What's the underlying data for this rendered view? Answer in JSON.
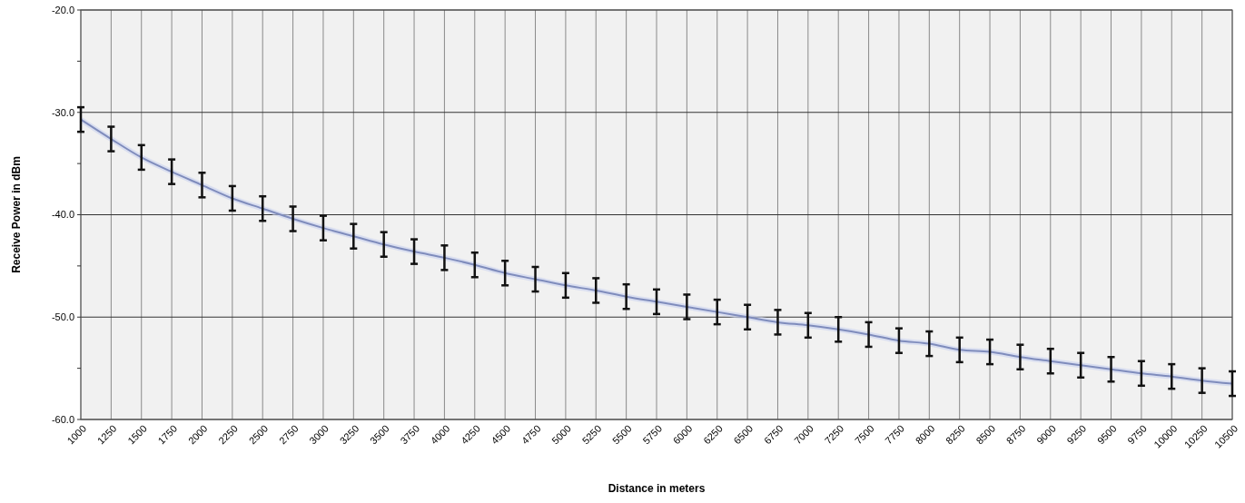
{
  "chart_data": {
    "type": "line",
    "xlabel": "Distance in meters",
    "ylabel": "Receive Power in dBm",
    "categories": [
      "1000",
      "1250",
      "1500",
      "1750",
      "2000",
      "2250",
      "2500",
      "2750",
      "3000",
      "3250",
      "3500",
      "3750",
      "4000",
      "4250",
      "4500",
      "4750",
      "5000",
      "5250",
      "5500",
      "5750",
      "6000",
      "6250",
      "6500",
      "6750",
      "7000",
      "7250",
      "7500",
      "7750",
      "8000",
      "8250",
      "8500",
      "8750",
      "9000",
      "9250",
      "9500",
      "9750",
      "10000",
      "10250",
      "10500"
    ],
    "series": [
      {
        "color": "#7f8cbc",
        "values": [
          -30.7,
          -32.6,
          -34.4,
          -35.8,
          -37.1,
          -38.4,
          -39.4,
          -40.4,
          -41.3,
          -42.1,
          -42.9,
          -43.6,
          -44.2,
          -44.9,
          -45.7,
          -46.3,
          -46.9,
          -47.4,
          -48.0,
          -48.5,
          -49.0,
          -49.5,
          -50.0,
          -50.5,
          -50.8,
          -51.2,
          -51.7,
          -52.3,
          -52.6,
          -53.2,
          -53.4,
          -53.9,
          -54.3,
          -54.7,
          -55.1,
          -55.5,
          -55.8,
          -56.2,
          -56.5
        ],
        "errors": [
          1.2,
          1.2,
          1.2,
          1.2,
          1.2,
          1.2,
          1.2,
          1.2,
          1.2,
          1.2,
          1.2,
          1.2,
          1.2,
          1.2,
          1.2,
          1.2,
          1.2,
          1.2,
          1.2,
          1.2,
          1.2,
          1.2,
          1.2,
          1.2,
          1.2,
          1.2,
          1.2,
          1.2,
          1.2,
          1.2,
          1.2,
          1.2,
          1.2,
          1.2,
          1.2,
          1.2,
          1.2,
          1.2,
          1.2
        ]
      }
    ],
    "ylim": [
      -60,
      -20
    ],
    "yticks": [
      {
        "value": -60,
        "label": "-60.0"
      },
      {
        "value": -55,
        "label": null
      },
      {
        "value": -50,
        "label": "-50.0"
      },
      {
        "value": -45,
        "label": null
      },
      {
        "value": -40,
        "label": "-40.0"
      },
      {
        "value": -35,
        "label": null
      },
      {
        "value": -30,
        "label": "-30.0"
      },
      {
        "value": -25,
        "label": null
      },
      {
        "value": -20,
        "label": "-20.0"
      }
    ],
    "grid": true,
    "marker": "none",
    "line_style": "solid"
  }
}
